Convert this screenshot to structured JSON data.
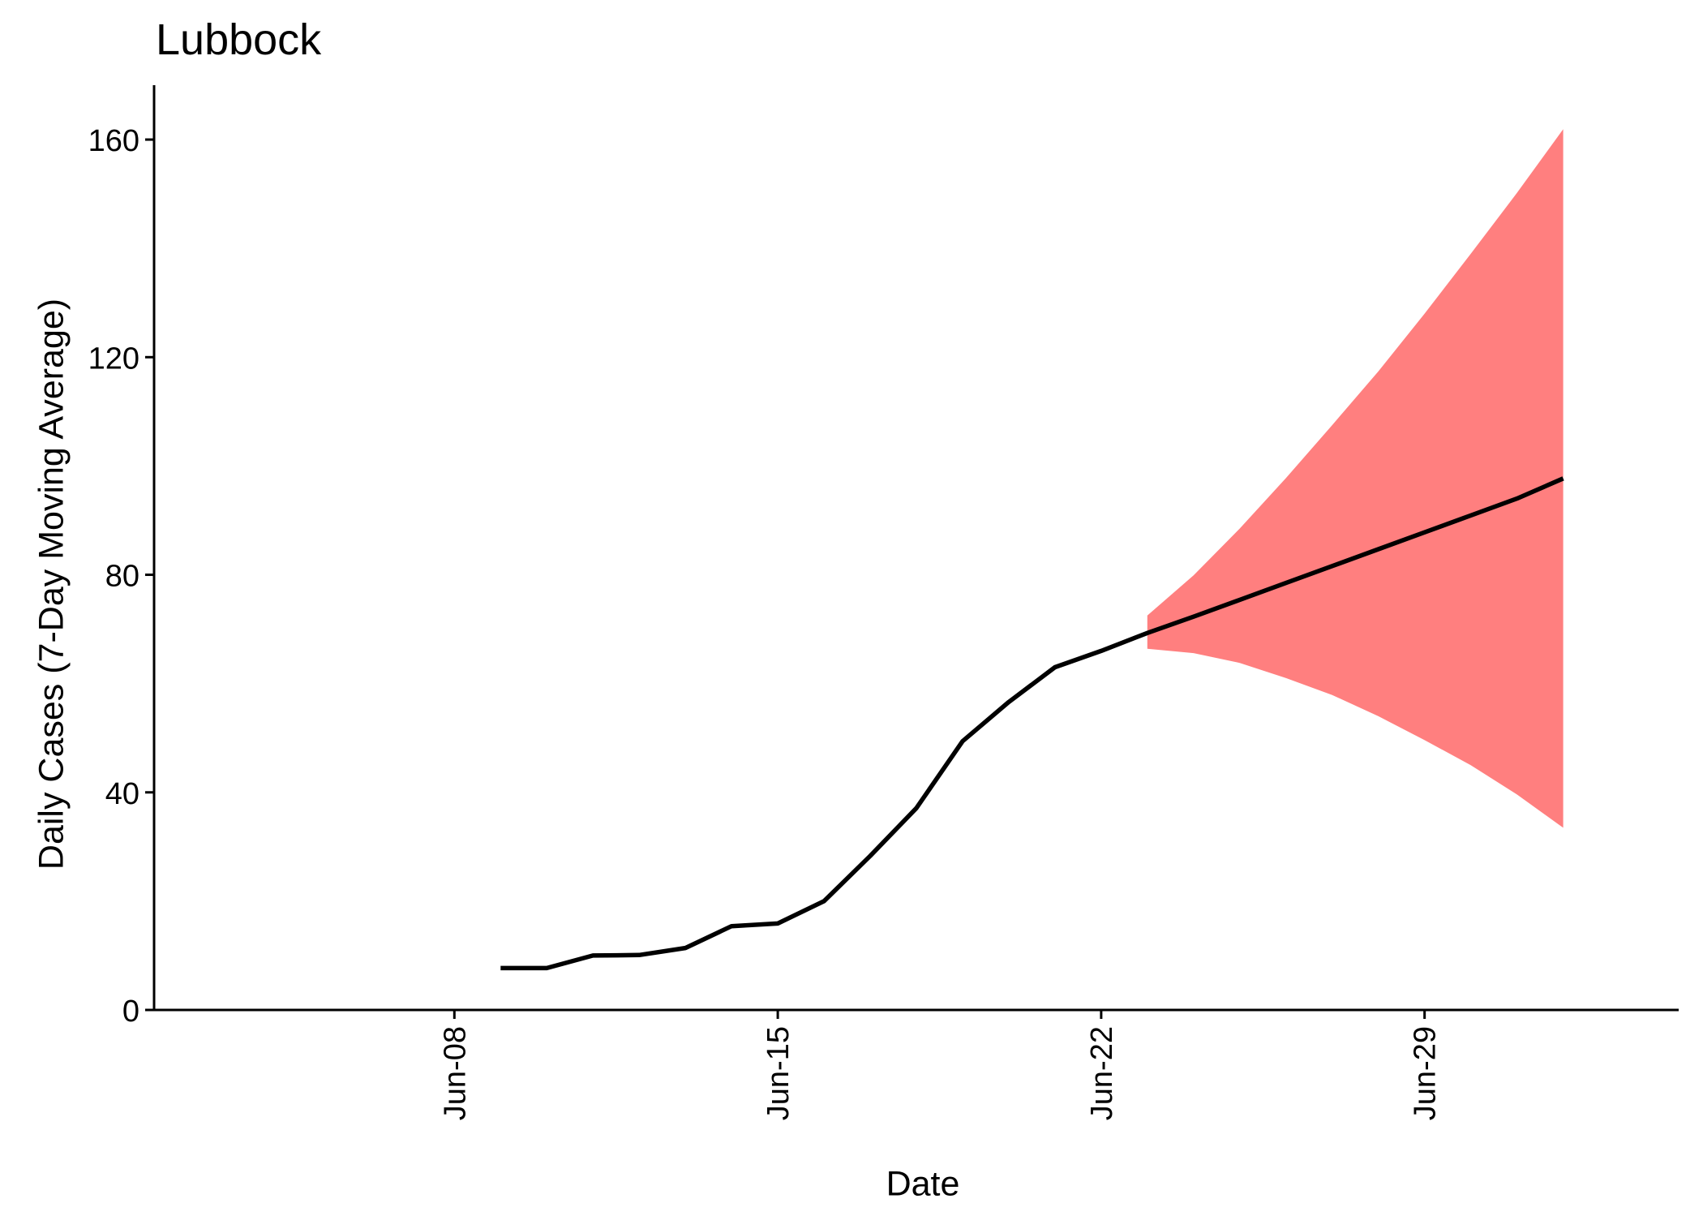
{
  "chart_data": {
    "type": "line",
    "title": "Lubbock",
    "xlabel": "Date",
    "ylabel": "Daily Cases (7-Day Moving Average)",
    "x_tick_labels": [
      "Jun-08",
      "Jun-15",
      "Jun-22",
      "Jun-29"
    ],
    "x_tick_dates": [
      "2020-06-08",
      "2020-06-15",
      "2020-06-22",
      "2020-06-29"
    ],
    "y_ticks": [
      0,
      40,
      80,
      120,
      160
    ],
    "xlim": [
      "2020-06-01 12:00",
      "2020-07-04 12:00"
    ],
    "ylim": [
      0,
      170
    ],
    "grid": false,
    "legend": "none",
    "colors": {
      "line": "#000000",
      "band": "#ff7f7f"
    },
    "series": [
      {
        "values": [
          {
            "x": "2020-06-09",
            "y": 7.7
          },
          {
            "x": "2020-06-10",
            "y": 7.7
          },
          {
            "x": "2020-06-11",
            "y": 10.0
          },
          {
            "x": "2020-06-12",
            "y": 10.1
          },
          {
            "x": "2020-06-13",
            "y": 11.4
          },
          {
            "x": "2020-06-14",
            "y": 15.4
          },
          {
            "x": "2020-06-15",
            "y": 15.9
          },
          {
            "x": "2020-06-16",
            "y": 20.0
          },
          {
            "x": "2020-06-17",
            "y": 28.3
          },
          {
            "x": "2020-06-18",
            "y": 37.1
          },
          {
            "x": "2020-06-19",
            "y": 49.4
          },
          {
            "x": "2020-06-20",
            "y": 56.6
          },
          {
            "x": "2020-06-21",
            "y": 63.0
          },
          {
            "x": "2020-06-22",
            "y": 66.0
          },
          {
            "x": "2020-06-23",
            "y": 69.3
          },
          {
            "x": "2020-06-24",
            "y": 72.3
          },
          {
            "x": "2020-06-25",
            "y": 75.4
          },
          {
            "x": "2020-06-26",
            "y": 78.5
          },
          {
            "x": "2020-06-27",
            "y": 81.6
          },
          {
            "x": "2020-06-28",
            "y": 84.7
          },
          {
            "x": "2020-06-29",
            "y": 87.8
          },
          {
            "x": "2020-06-30",
            "y": 90.9
          },
          {
            "x": "2020-07-01",
            "y": 94.0
          },
          {
            "x": "2020-07-02",
            "y": 97.7
          }
        ]
      }
    ],
    "band": [
      {
        "x": "2020-06-23",
        "lower": 66.4,
        "upper": 72.5
      },
      {
        "x": "2020-06-24",
        "lower": 65.6,
        "upper": 79.9
      },
      {
        "x": "2020-06-25",
        "lower": 63.8,
        "upper": 88.5
      },
      {
        "x": "2020-06-26",
        "lower": 61.0,
        "upper": 97.8
      },
      {
        "x": "2020-06-27",
        "lower": 57.9,
        "upper": 107.5
      },
      {
        "x": "2020-06-28",
        "lower": 54.0,
        "upper": 117.4
      },
      {
        "x": "2020-06-29",
        "lower": 49.6,
        "upper": 128.0
      },
      {
        "x": "2020-06-30",
        "lower": 45.0,
        "upper": 139.0
      },
      {
        "x": "2020-07-01",
        "lower": 39.6,
        "upper": 150.2
      },
      {
        "x": "2020-07-02",
        "lower": 33.5,
        "upper": 161.9
      }
    ]
  }
}
